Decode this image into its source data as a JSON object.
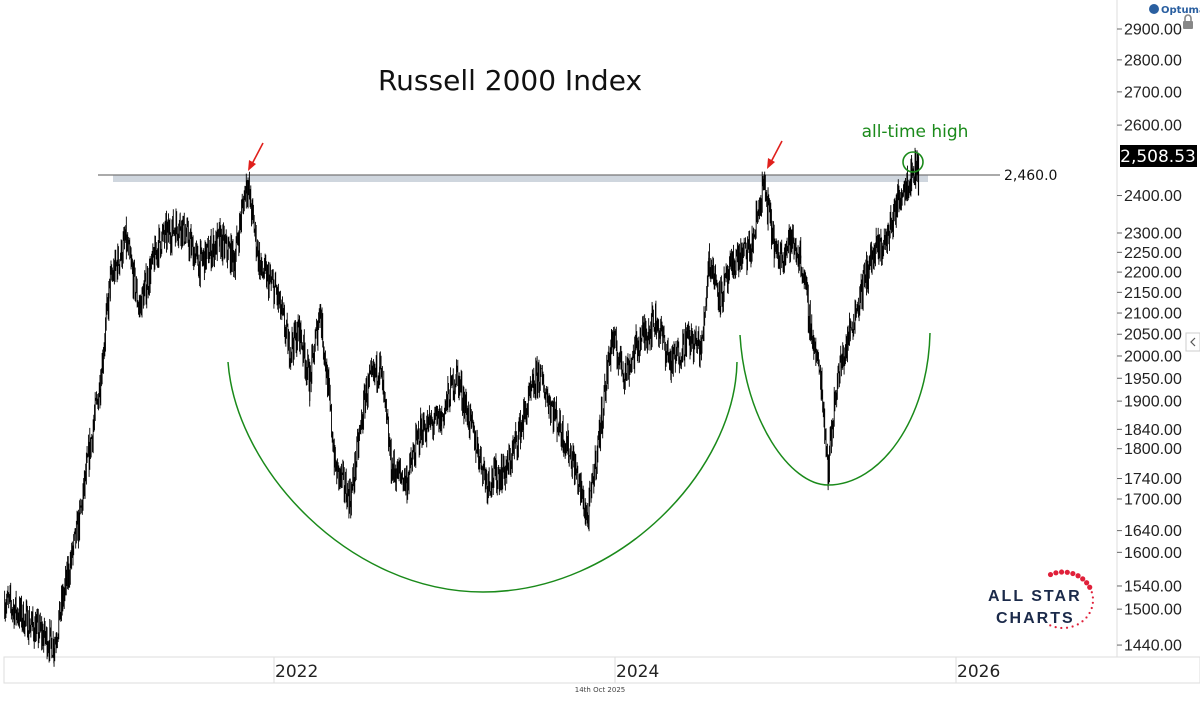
{
  "chart_data": {
    "type": "ohlc-line",
    "title": "Russell 2000 Index",
    "y_scale": "log",
    "ylim": [
      1420,
      2960
    ],
    "xlim": [
      2020.4,
      2026.9
    ],
    "y_ticks": [
      "2900.00",
      "2800.00",
      "2700.00",
      "2600.00",
      "2400.00",
      "2300.00",
      "2250.00",
      "2200.00",
      "2150.00",
      "2100.00",
      "2050.00",
      "2000.00",
      "1950.00",
      "1900.00",
      "1840.00",
      "1800.00",
      "1740.00",
      "1700.00",
      "1640.00",
      "1600.00",
      "1540.00",
      "1500.00",
      "1440.00"
    ],
    "x_ticks": [
      {
        "label": "2022",
        "value": 2022
      },
      {
        "label": "2024",
        "value": 2024
      },
      {
        "label": "2026",
        "value": 2026
      }
    ],
    "last_price_label": "2,508.53",
    "last_price": 2508.53,
    "resistance": {
      "value": 2460.0,
      "label": "2,460.0"
    },
    "annotations": {
      "ath_label": "all-time high"
    },
    "series": [
      {
        "name": "Russell 2000",
        "points": [
          [
            2020.42,
            1515
          ],
          [
            2020.55,
            1480
          ],
          [
            2020.71,
            1440
          ],
          [
            2020.86,
            1660
          ],
          [
            2020.98,
            1940
          ],
          [
            2021.04,
            2175
          ],
          [
            2021.13,
            2280
          ],
          [
            2021.21,
            2112
          ],
          [
            2021.33,
            2280
          ],
          [
            2021.45,
            2327
          ],
          [
            2021.56,
            2220
          ],
          [
            2021.68,
            2280
          ],
          [
            2021.77,
            2233
          ],
          [
            2021.84,
            2442
          ],
          [
            2021.92,
            2207
          ],
          [
            2022.01,
            2155
          ],
          [
            2022.09,
            2018
          ],
          [
            2022.15,
            2060
          ],
          [
            2022.21,
            1940
          ],
          [
            2022.27,
            2110
          ],
          [
            2022.36,
            1760
          ],
          [
            2022.45,
            1700
          ],
          [
            2022.54,
            1920
          ],
          [
            2022.62,
            1980
          ],
          [
            2022.69,
            1760
          ],
          [
            2022.78,
            1735
          ],
          [
            2022.86,
            1840
          ],
          [
            2022.98,
            1860
          ],
          [
            2023.07,
            1960
          ],
          [
            2023.16,
            1840
          ],
          [
            2023.25,
            1735
          ],
          [
            2023.37,
            1760
          ],
          [
            2023.46,
            1860
          ],
          [
            2023.55,
            1960
          ],
          [
            2023.66,
            1860
          ],
          [
            2023.75,
            1780
          ],
          [
            2023.84,
            1660
          ],
          [
            2023.92,
            1860
          ],
          [
            2023.98,
            2040
          ],
          [
            2024.06,
            1960
          ],
          [
            2024.15,
            2040
          ],
          [
            2024.24,
            2085
          ],
          [
            2024.33,
            1980
          ],
          [
            2024.42,
            2040
          ],
          [
            2024.51,
            2018
          ],
          [
            2024.55,
            2233
          ],
          [
            2024.62,
            2140
          ],
          [
            2024.71,
            2233
          ],
          [
            2024.8,
            2256
          ],
          [
            2024.87,
            2430
          ],
          [
            2024.95,
            2233
          ],
          [
            2025.03,
            2280
          ],
          [
            2025.09,
            2233
          ],
          [
            2025.15,
            2060
          ],
          [
            2025.21,
            1940
          ],
          [
            2025.25,
            1760
          ],
          [
            2025.3,
            1940
          ],
          [
            2025.38,
            2060
          ],
          [
            2025.5,
            2233
          ],
          [
            2025.59,
            2280
          ],
          [
            2025.68,
            2415
          ],
          [
            2025.74,
            2460
          ],
          [
            2025.78,
            2490
          ]
        ]
      }
    ]
  },
  "footer": {
    "date": "14th Oct 2025"
  },
  "branding": {
    "platform": "Optuma",
    "logo_line1": "ALL STAR",
    "logo_line2": "CHARTS"
  },
  "colors": {
    "arc": "#1a8a1a",
    "arrow": "#e0201c",
    "band": "#cfd6de",
    "price_box": "#000000"
  }
}
